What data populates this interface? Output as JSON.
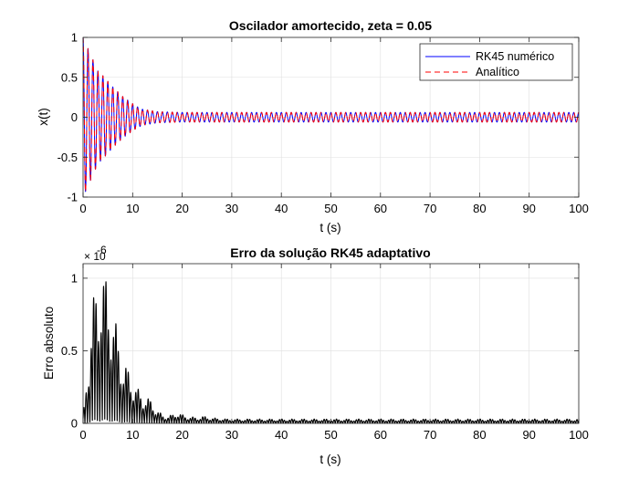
{
  "chart_data": [
    {
      "type": "line",
      "title": "Oscilador amortecido, zeta = 0.05",
      "xlabel": "t (s)",
      "ylabel": "x(t)",
      "xlim": [
        0,
        100
      ],
      "ylim": [
        -1,
        1
      ],
      "xticks": [
        0,
        10,
        20,
        30,
        40,
        50,
        60,
        70,
        80,
        90,
        100
      ],
      "yticks": [
        -1,
        -0.5,
        0,
        0.5,
        1
      ],
      "grid": true,
      "legend_position": "top-right",
      "series": [
        {
          "name": "RK45 numérico",
          "color": "#0000ff",
          "style": "solid",
          "envelope": {
            "x": [
              0,
              1,
              2,
              3,
              4,
              6,
              8,
              10,
              11,
              12,
              15,
              20,
              100
            ],
            "amplitude": [
              1.0,
              0.86,
              0.72,
              0.58,
              0.52,
              0.38,
              0.26,
              0.17,
              0.13,
              0.1,
              0.07,
              0.06,
              0.06
            ]
          },
          "frequency_hz": 1.0
        },
        {
          "name": "Analítico",
          "color": "#ff0000",
          "style": "dashed",
          "envelope": {
            "x": [
              0,
              1,
              2,
              3,
              4,
              6,
              8,
              10,
              11,
              12,
              15,
              20,
              100
            ],
            "amplitude": [
              1.0,
              0.86,
              0.72,
              0.58,
              0.52,
              0.38,
              0.26,
              0.17,
              0.13,
              0.1,
              0.07,
              0.06,
              0.06
            ]
          },
          "frequency_hz": 1.0
        }
      ]
    },
    {
      "type": "line",
      "title": "Erro da solução RK45 adaptativo",
      "xlabel": "t (s)",
      "ylabel": "Erro absoluto",
      "y_exponent": "×10^-6",
      "exponent_base": "× 10",
      "exponent_power": "-6",
      "xlim": [
        0,
        100
      ],
      "ylim": [
        0,
        1.1
      ],
      "xticks": [
        0,
        10,
        20,
        30,
        40,
        50,
        60,
        70,
        80,
        90,
        100
      ],
      "yticks": [
        0,
        0.5,
        1
      ],
      "grid": true,
      "series": [
        {
          "color": "#000000",
          "style": "solid",
          "envelope": {
            "x": [
              0,
              1,
              2,
              3,
              3.7,
              5,
              6,
              7,
              8,
              9,
              10,
              11,
              12,
              13,
              14,
              15,
              16,
              17,
              18,
              19,
              20,
              21,
              22,
              23,
              24,
              25,
              26,
              27,
              28,
              29,
              30,
              100
            ],
            "max": [
              0.05,
              0.45,
              0.85,
              1.03,
              1.07,
              0.98,
              0.8,
              0.62,
              0.45,
              0.38,
              0.31,
              0.24,
              0.2,
              0.18,
              0.15,
              0.09,
              0.06,
              0.05,
              0.06,
              0.08,
              0.06,
              0.05,
              0.045,
              0.04,
              0.05,
              0.045,
              0.04,
              0.035,
              0.035,
              0.03,
              0.03,
              0.03
            ]
          },
          "frequency_hz": 2.0
        }
      ]
    }
  ]
}
